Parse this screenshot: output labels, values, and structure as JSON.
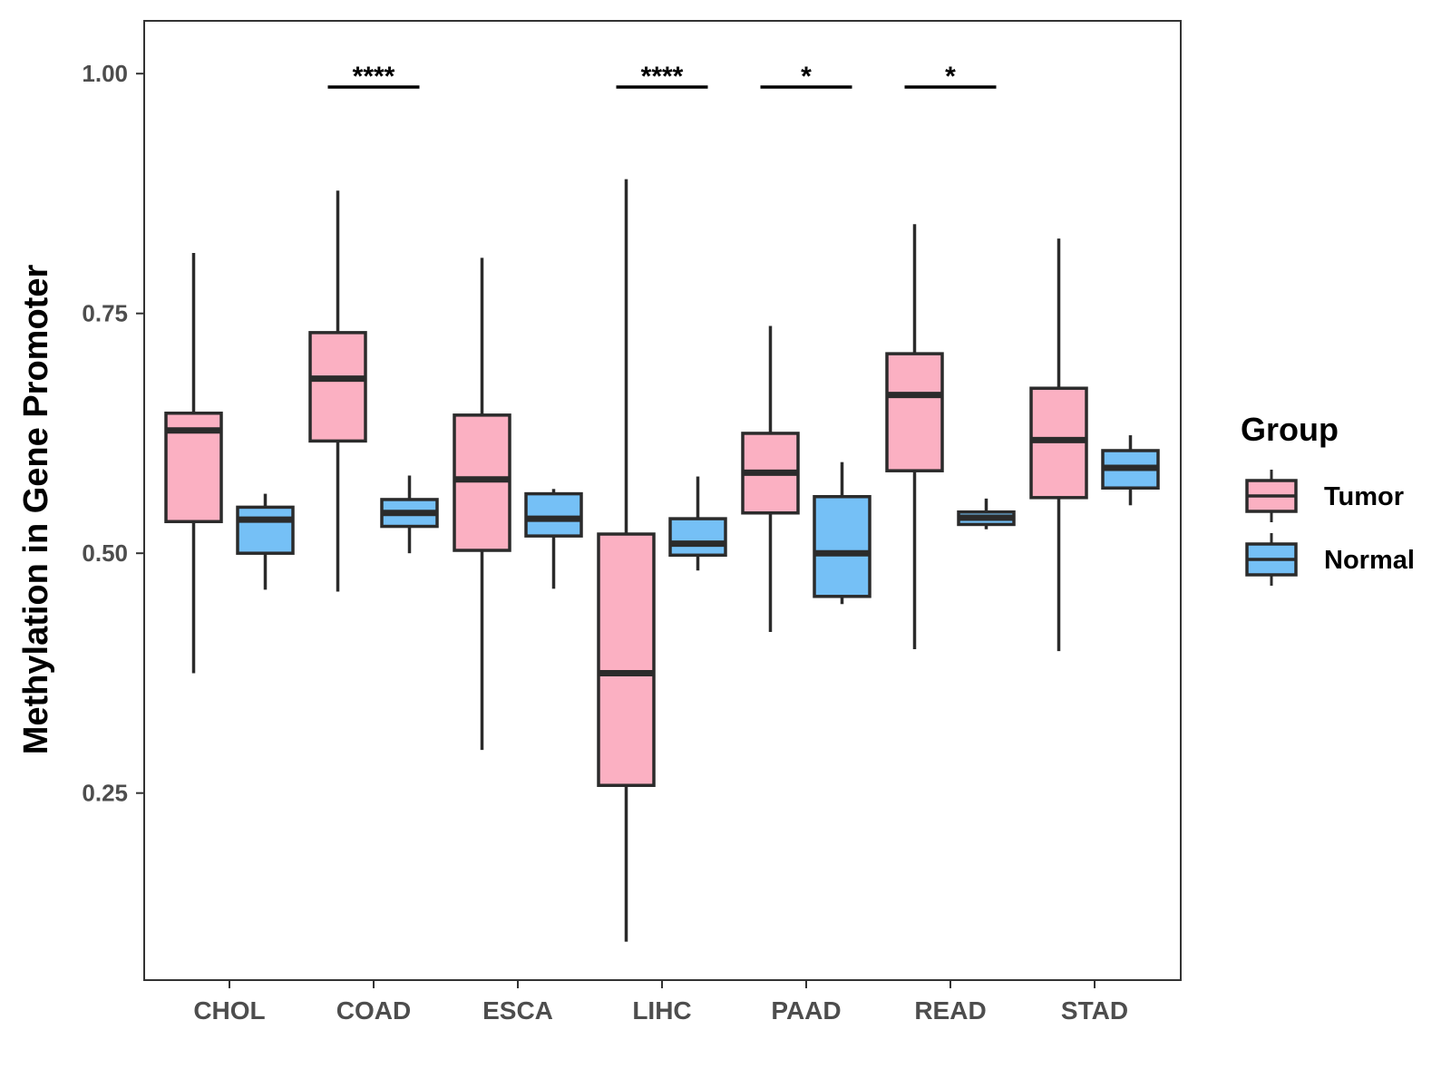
{
  "chart_data": {
    "type": "boxplot",
    "title": "",
    "xlabel": "",
    "ylabel": "Methylation in Gene Promoter",
    "ylim": [
      0.055,
      1.055
    ],
    "yticks": [
      0.25,
      0.5,
      0.75,
      1.0
    ],
    "ytick_labels": [
      "0.25",
      "0.50",
      "0.75",
      "1.00"
    ],
    "categories": [
      "CHOL",
      "COAD",
      "ESCA",
      "LIHC",
      "PAAD",
      "READ",
      "STAD"
    ],
    "legend": {
      "title": "Group",
      "position": "right",
      "entries": [
        {
          "name": "Tumor",
          "color": "#fbb0c2"
        },
        {
          "name": "Normal",
          "color": "#75c0f6"
        }
      ]
    },
    "series": [
      {
        "name": "Tumor",
        "color": "#fbb0c2",
        "boxes": [
          {
            "min": 0.375,
            "q1": 0.533,
            "median": 0.628,
            "q3": 0.646,
            "max": 0.813
          },
          {
            "min": 0.46,
            "q1": 0.617,
            "median": 0.682,
            "q3": 0.73,
            "max": 0.878
          },
          {
            "min": 0.295,
            "q1": 0.503,
            "median": 0.577,
            "q3": 0.644,
            "max": 0.808
          },
          {
            "min": 0.095,
            "q1": 0.258,
            "median": 0.375,
            "q3": 0.52,
            "max": 0.89
          },
          {
            "min": 0.418,
            "q1": 0.542,
            "median": 0.584,
            "q3": 0.625,
            "max": 0.737
          },
          {
            "min": 0.4,
            "q1": 0.586,
            "median": 0.665,
            "q3": 0.708,
            "max": 0.843
          },
          {
            "min": 0.398,
            "q1": 0.558,
            "median": 0.618,
            "q3": 0.672,
            "max": 0.828
          }
        ]
      },
      {
        "name": "Normal",
        "color": "#75c0f6",
        "boxes": [
          {
            "min": 0.462,
            "q1": 0.5,
            "median": 0.535,
            "q3": 0.548,
            "max": 0.562
          },
          {
            "min": 0.5,
            "q1": 0.528,
            "median": 0.542,
            "q3": 0.556,
            "max": 0.581
          },
          {
            "min": 0.463,
            "q1": 0.518,
            "median": 0.536,
            "q3": 0.562,
            "max": 0.567
          },
          {
            "min": 0.482,
            "q1": 0.498,
            "median": 0.51,
            "q3": 0.536,
            "max": 0.58
          },
          {
            "min": 0.447,
            "q1": 0.455,
            "median": 0.5,
            "q3": 0.559,
            "max": 0.595
          },
          {
            "min": 0.525,
            "q1": 0.53,
            "median": 0.537,
            "q3": 0.543,
            "max": 0.557
          },
          {
            "min": 0.55,
            "q1": 0.568,
            "median": 0.589,
            "q3": 0.607,
            "max": 0.623
          }
        ]
      }
    ],
    "annotations": [
      {
        "category": "COAD",
        "label": "****",
        "y": 0.986
      },
      {
        "category": "LIHC",
        "label": "****",
        "y": 0.986
      },
      {
        "category": "PAAD",
        "label": "*",
        "y": 0.986
      },
      {
        "category": "READ",
        "label": "*",
        "y": 0.986
      }
    ]
  }
}
